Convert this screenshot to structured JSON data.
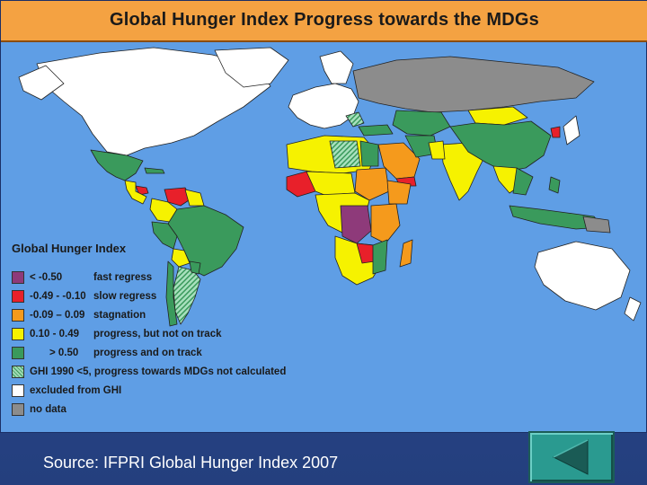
{
  "title": "Global Hunger Index Progress towards the MDGs",
  "colors": {
    "ocean": "#5f9ee5",
    "title_bg": "#f4a242",
    "fast_regress": "#8e3a7a",
    "slow_regress": "#e8202a",
    "stagnation": "#f59a1c",
    "progress_not_on_track": "#f6f200",
    "on_track": "#3a9a5c",
    "excluded": "#ffffff",
    "no_data": "#8c8c8c"
  },
  "legend": {
    "title": "Global Hunger Index",
    "items": [
      {
        "range": "< -0.50",
        "desc": "fast regress",
        "color": "#8e3a7a"
      },
      {
        "range": "-0.49 - -0.10",
        "desc": "slow regress",
        "color": "#e8202a"
      },
      {
        "range": "-0.09 – 0.09",
        "desc": "stagnation",
        "color": "#f59a1c"
      },
      {
        "range": "0.10 - 0.49",
        "desc": "progress, but not on track",
        "color": "#f6f200"
      },
      {
        "range": "> 0.50",
        "desc": "progress and on track",
        "color": "#3a9a5c"
      },
      {
        "range": "",
        "desc": "GHI 1990 <5, progress towards MDGs not calculated",
        "color": "hatched-green"
      },
      {
        "range": "",
        "desc": "excluded from GHI",
        "color": "#ffffff"
      },
      {
        "range": "",
        "desc": "no data",
        "color": "#8c8c8c"
      }
    ]
  },
  "source": "Source: IFPRI Global Hunger Index 2007",
  "nav": {
    "back_icon": "back-triangle-icon"
  }
}
